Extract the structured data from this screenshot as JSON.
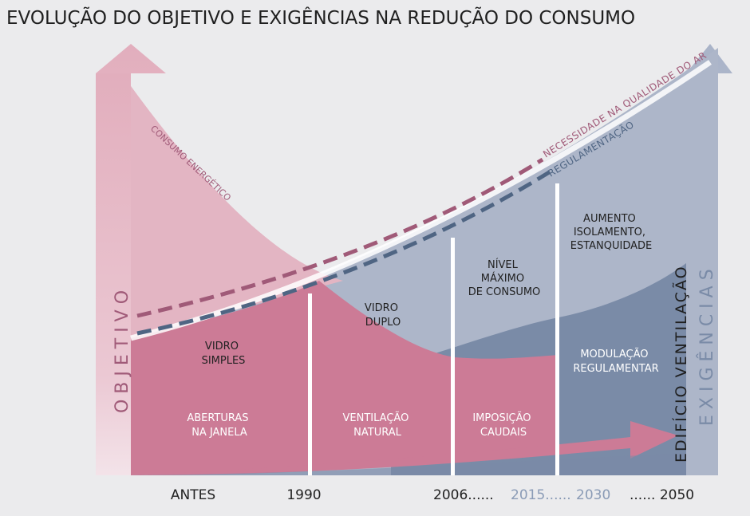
{
  "title": "EVOLUÇÃO DO OBJETIVO E EXIGÊNCIAS NA REDUÇÃO DO CONSUMO",
  "axes": {
    "left_label": "O B J E T I V O",
    "right_label": "E X I G Ê N C I A S"
  },
  "curves": {
    "consumo": "CONSUMO ENERGÉTICO",
    "qualidade_ar": "NECESSIDADE NA QUALIDADE DO AR",
    "regulamentacao": "REGULAMENTAÇÃO"
  },
  "vertical_label": "EDIFÍCIO VENTILAÇÃO",
  "labels": {
    "vidro_simples": [
      "VIDRO",
      "SIMPLES"
    ],
    "vidro_duplo": [
      "VIDRO",
      "DUPLO"
    ],
    "nivel_maximo": [
      "NÍVEL",
      "MÁXIMO",
      "DE CONSUMO"
    ],
    "aumento": [
      "AUMENTO",
      "ISOLAMENTO,",
      "ESTANQUIDADE"
    ],
    "modulacao": [
      "MODULAÇÃO",
      "REGULAMENTAR"
    ],
    "aberturas": [
      "ABERTURAS",
      "NA JANELA"
    ],
    "ventilacao_natural": [
      "VENTILAÇÃO",
      "NATURAL"
    ],
    "imposicao": [
      "IMPOSIÇÃO",
      "CAUDAIS"
    ]
  },
  "timeline": {
    "antes": "ANTES",
    "y1990": "1990",
    "y2006": "2006......",
    "y2015": "2015......",
    "y2030": "2030",
    "y2050": "...... 2050"
  },
  "colors": {
    "background": "#ebebed",
    "pink_light": "#e3b5c3",
    "pink": "#cc7b96",
    "slate_light": "#adb6c9",
    "slate": "#7a8ba7",
    "dash_pink": "#a05a78",
    "dash_slate": "#4f6583",
    "text_dark": "#222222",
    "text_slate": "#8a9bb6"
  }
}
